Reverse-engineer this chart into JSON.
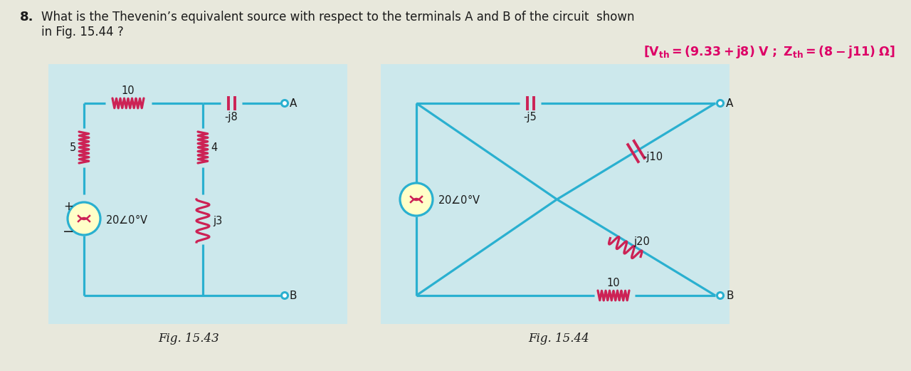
{
  "bg_color": "#cce8ec",
  "page_bg": "#e8e8dc",
  "line_color": "#2ab0d0",
  "component_color": "#cc2255",
  "text_color_dark": "#1a1a1a",
  "answer_color": "#dd0066",
  "fig143_label": "Fig. 15.43",
  "fig144_label": "Fig. 15.44",
  "panel1": [
    68,
    90,
    420,
    365
  ],
  "panel2": [
    535,
    90,
    490,
    365
  ],
  "title_line1": "What is the Thevenin’s equivalent source with respect to the terminals A and B of the circuit  shown",
  "title_line2": "in Fig. 15.44 ?",
  "title_num": "8.",
  "answer_str": "[V_th = (9.33 + j8) V ; Z_th = (8 −j11) Ω]"
}
